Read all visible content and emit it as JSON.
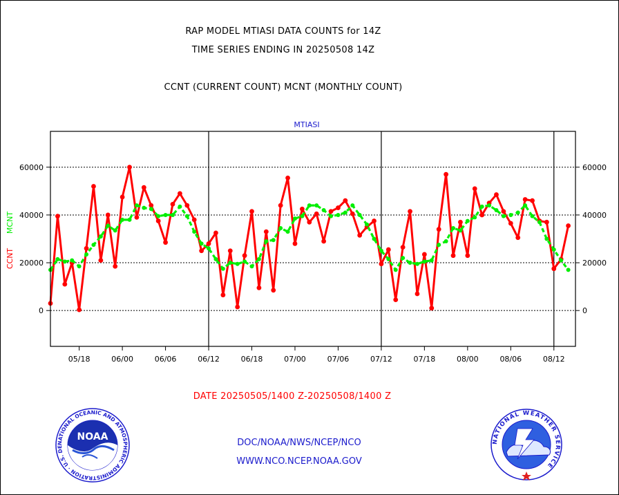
{
  "titles": {
    "line1": "RAP MODEL MTIASI DATA COUNTS for 14Z",
    "line2": "TIME SERIES ENDING IN 20250508 14Z",
    "line3": "CCNT (CURRENT COUNT) MCNT (MONTHLY COUNT)"
  },
  "footer": {
    "date_range": "DATE 20250505/1400 Z-20250508/1400 Z",
    "org": "DOC/NOAA/NWS/NCEP/NCO",
    "url": "WWW.NCO.NCEP.NOAA.GOV"
  },
  "logos": {
    "noaa": {
      "label": "NOAA",
      "ring_text": "NATIONAL OCEANIC AND ATMOSPHERIC ADMINISTRATION · U.S. DEPARTMENT OF COMMERCE"
    },
    "nws": {
      "ring_text": "NATIONAL WEATHER SERVICE"
    }
  },
  "colors": {
    "ccnt": "#ff0000",
    "mcnt": "#00ee00",
    "footer_link": "#1a1acc",
    "panel_title": "#1a1acc"
  },
  "chart_data": {
    "type": "line",
    "title": "MTIASI",
    "ylabel_parts": [
      {
        "text": "CCNT",
        "color": "#ff0000"
      },
      {
        "text": "MCNT",
        "color": "#00ee00"
      }
    ],
    "ylim": [
      -15000,
      75000
    ],
    "yticks": [
      0,
      20000,
      40000,
      60000
    ],
    "ytick_labels": [
      "0",
      "20000",
      "40000",
      "60000"
    ],
    "xlim": [
      0,
      73
    ],
    "xtick_positions": [
      4,
      10,
      16,
      22,
      28,
      34,
      40,
      46,
      52,
      58,
      64,
      70
    ],
    "xtick_labels": [
      "05/18",
      "06/00",
      "06/06",
      "06/12",
      "06/18",
      "07/00",
      "07/06",
      "07/12",
      "07/18",
      "08/00",
      "08/06",
      "08/12"
    ],
    "day_boundaries": [
      22,
      46,
      70
    ],
    "grid": "y-dotted",
    "series": [
      {
        "name": "CCNT",
        "color": "#ff0000",
        "values": [
          3000,
          39500,
          11000,
          20000,
          300,
          26000,
          52000,
          21000,
          40000,
          18500,
          47500,
          60000,
          39000,
          51500,
          44000,
          37500,
          28500,
          44500,
          49000,
          44000,
          38000,
          25000,
          28000,
          32500,
          6500,
          25000,
          1500,
          23000,
          41500,
          9500,
          33000,
          8500,
          44000,
          55500,
          28000,
          42500,
          37000,
          40500,
          29000,
          41500,
          43000,
          46000,
          40500,
          31500,
          35000,
          37500,
          19500,
          25500,
          4500,
          26500,
          41500,
          7000,
          23500,
          1000,
          34000,
          57000,
          23000,
          37000,
          23000,
          51000,
          40000,
          45000,
          48500,
          41500,
          36500,
          30500,
          46500,
          46000,
          37500,
          37000,
          17500,
          21500,
          35500
        ]
      },
      {
        "name": "MCNT",
        "color": "#00ee00",
        "values": [
          17000,
          21500,
          20500,
          21000,
          18500,
          23500,
          27500,
          31000,
          35500,
          33500,
          38000,
          38000,
          44000,
          43000,
          42500,
          39500,
          40000,
          40000,
          43500,
          39500,
          33000,
          28000,
          26000,
          21500,
          17500,
          20000,
          19500,
          20500,
          18500,
          21500,
          29000,
          29500,
          34500,
          33000,
          38500,
          39500,
          44000,
          44000,
          42000,
          39500,
          40000,
          41000,
          44000,
          40000,
          36000,
          30000,
          25000,
          21500,
          17000,
          22000,
          20000,
          19500,
          20500,
          21000,
          27500,
          29000,
          34500,
          33500,
          37500,
          39000,
          43500,
          44000,
          42000,
          39500,
          40000,
          41000,
          44000,
          39500,
          37000,
          30000,
          25500,
          21000,
          17000
        ]
      }
    ]
  }
}
